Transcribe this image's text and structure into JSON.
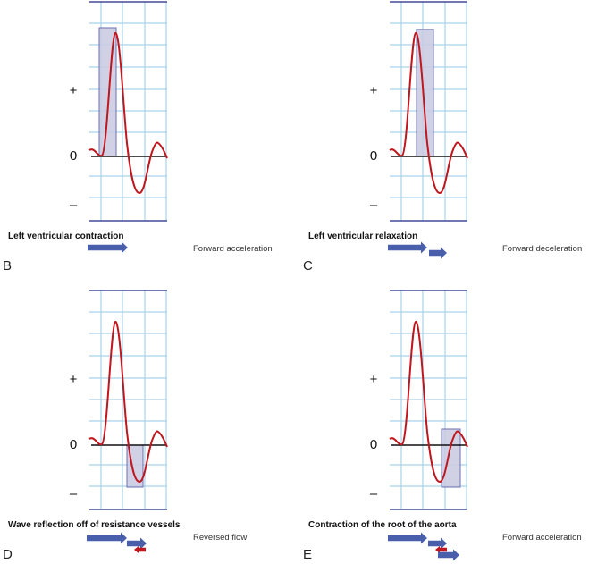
{
  "axis_labels": {
    "plus": "+",
    "zero": "0",
    "minus": "–"
  },
  "colors": {
    "grid": "#a8d4ea",
    "frame": "#44489a",
    "curve": "#c0161e",
    "window_fill": "#c9c9e2",
    "window_stroke": "#6d6fb0",
    "arrow": "#4a5fab",
    "reverse_arrow": "#c0161e",
    "axis": "#111111"
  },
  "panels": [
    {
      "letter": "B",
      "caption": "Left ventricular contraction",
      "result": "Forward acceleration"
    },
    {
      "letter": "C",
      "caption": "Left ventricular relaxation",
      "result": "Forward deceleration"
    },
    {
      "letter": "D",
      "caption": "Wave reflection off of resistance vessels",
      "result": "Reversed flow"
    },
    {
      "letter": "E",
      "caption": "Contraction of the root of the aorta",
      "result": "Forward acceleration"
    }
  ]
}
